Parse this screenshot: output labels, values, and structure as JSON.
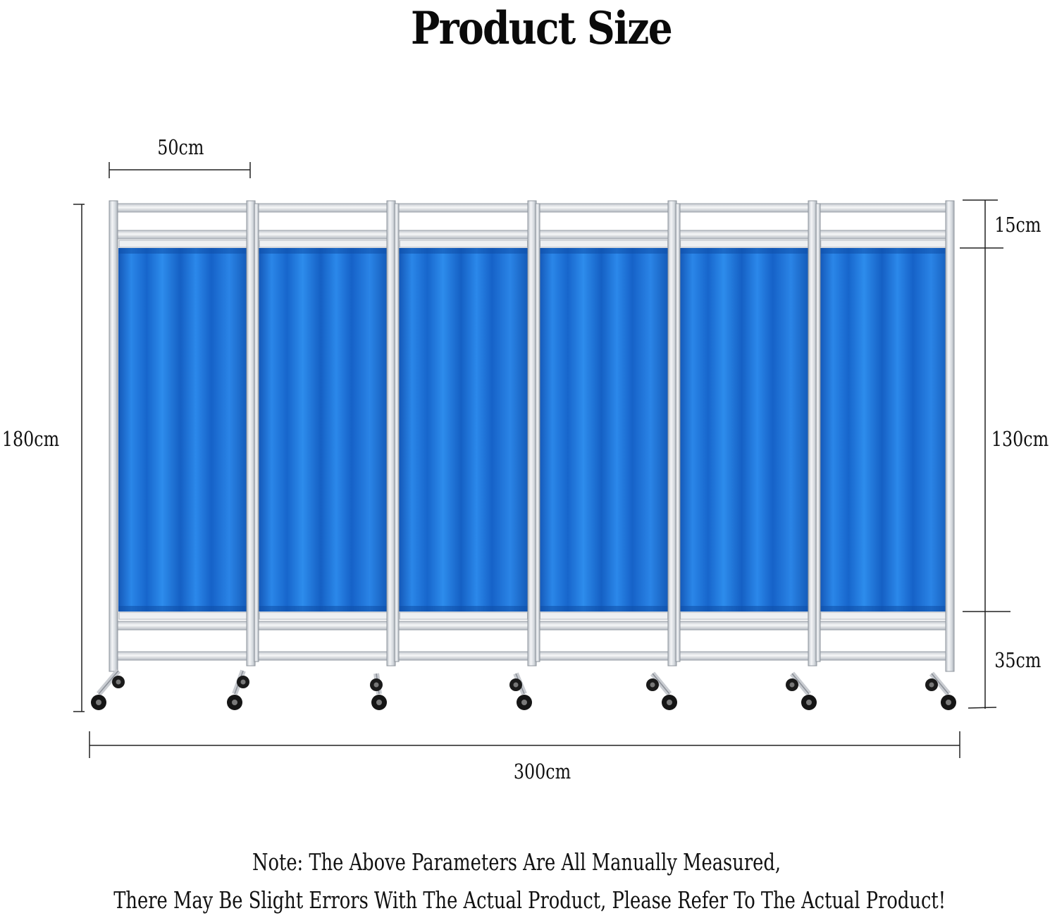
{
  "title": "Product Size",
  "dimensions": {
    "panel_width": "50cm",
    "total_height": "180cm",
    "top_frame": "15cm",
    "curtain_height": "130cm",
    "bottom_frame": "35cm",
    "total_width": "300cm"
  },
  "note": {
    "line1": "Note: The Above Parameters Are All Manually Measured,",
    "line2": "There May Be Slight Errors With The Actual Product, Please Refer To The Actual Product!"
  },
  "product": {
    "panel_count": 6,
    "curtain_color": "#1a6fd4",
    "frame_color": "#d9dde2"
  }
}
